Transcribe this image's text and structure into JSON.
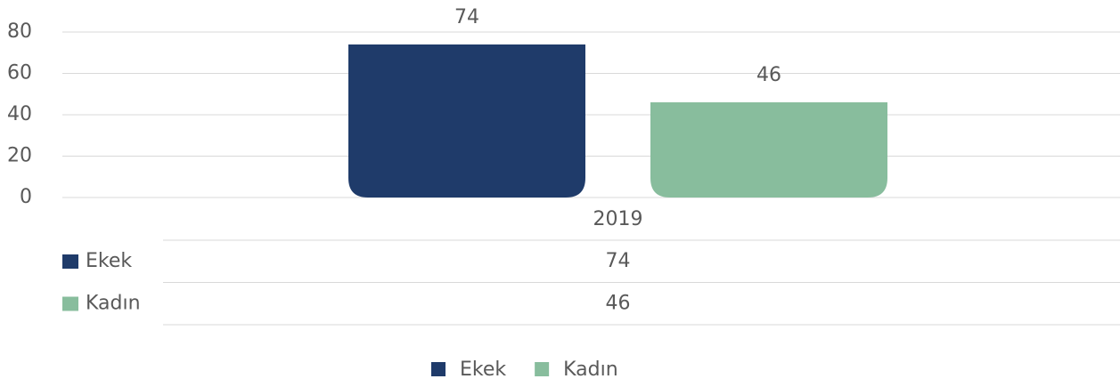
{
  "chart_data": {
    "type": "bar",
    "categories": [
      "2019"
    ],
    "series": [
      {
        "name": "Ekek",
        "color": "#1f3b6a",
        "values": [
          74
        ]
      },
      {
        "name": "Kadın",
        "color": "#88bd9d",
        "values": [
          46
        ]
      }
    ],
    "ylim": [
      0,
      80
    ],
    "yticks": [
      0,
      20,
      40,
      60,
      80
    ],
    "grid": true,
    "data_table": true,
    "legend": "bottom"
  }
}
